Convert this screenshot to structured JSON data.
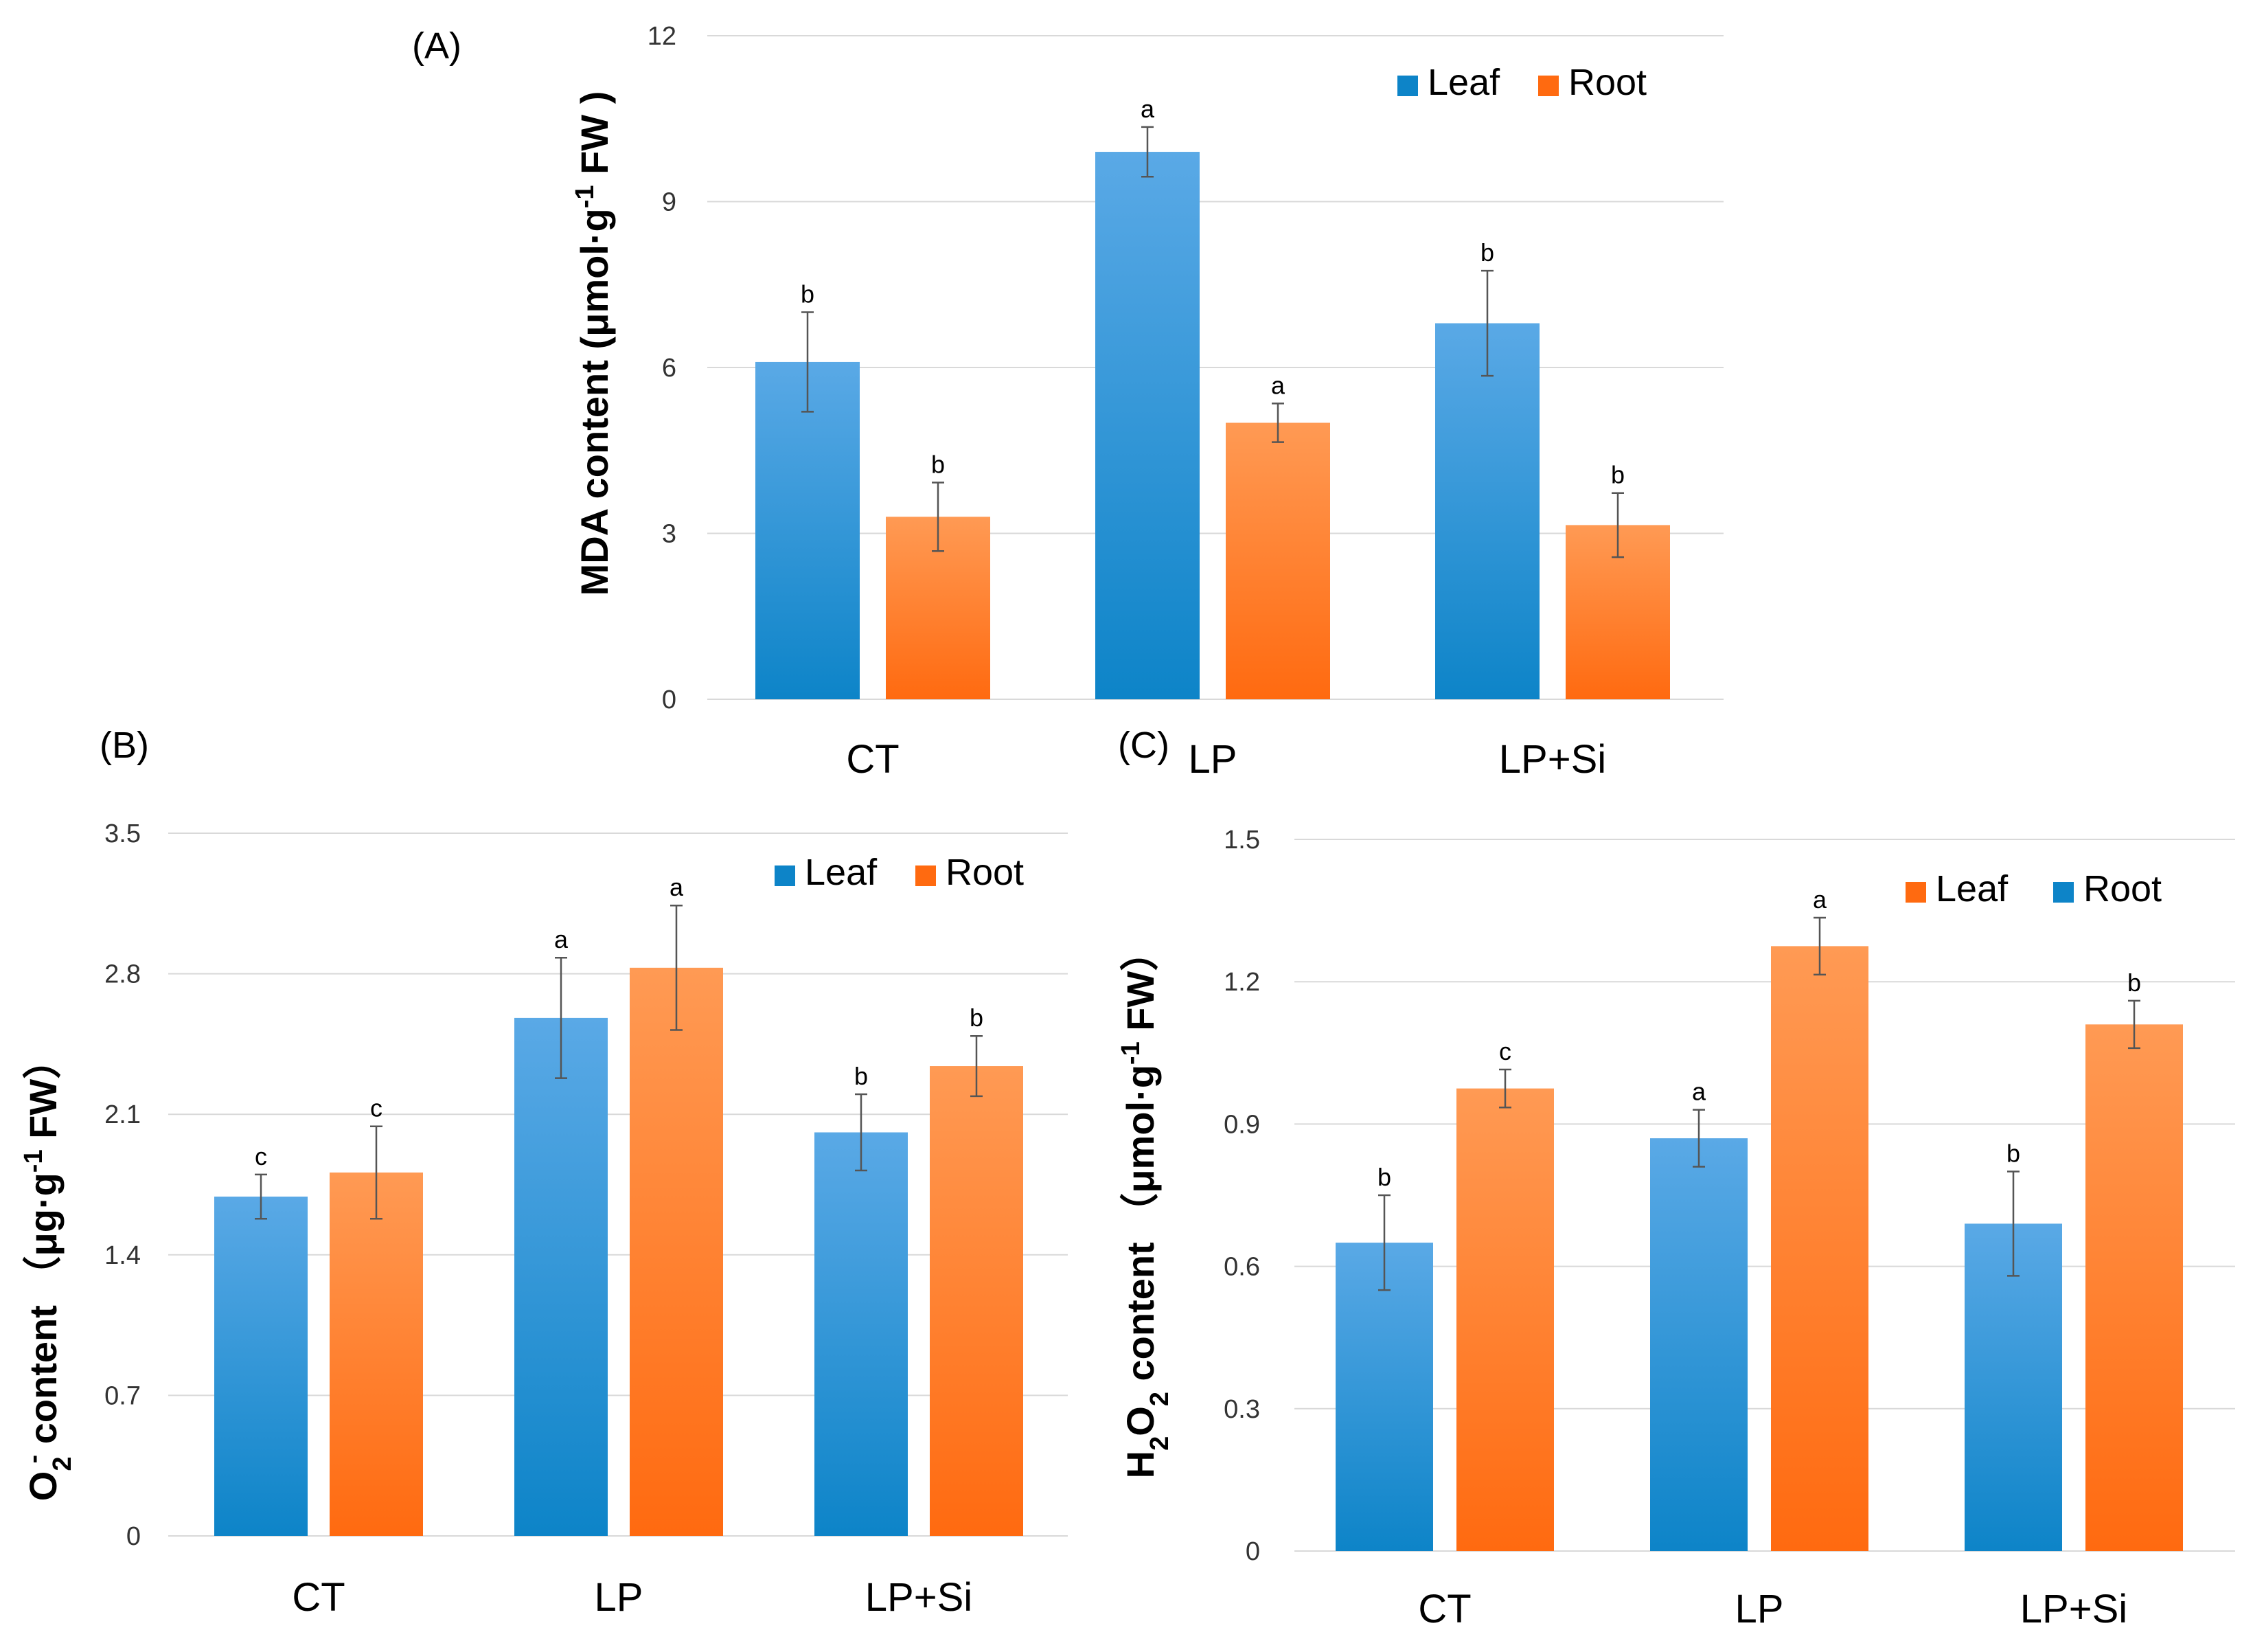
{
  "colors": {
    "blue_top": "#5aa9e6",
    "blue_bottom": "#0d84c8",
    "orange_top": "#ff9a54",
    "orange_bottom": "#ff6a10"
  },
  "chart_data": [
    {
      "id": "A",
      "type": "bar",
      "panel_label": "(A)",
      "categories": [
        "CT",
        "LP",
        "LP+Si"
      ],
      "ylabel_parts": [
        "MDA content (μmol·g",
        "-1",
        " FW )"
      ],
      "ylim": [
        0,
        12
      ],
      "yticks": [
        0,
        3,
        6,
        9,
        12
      ],
      "ytick_labels": [
        "0",
        "3",
        "6",
        "9",
        "12"
      ],
      "legend_position": "top-right",
      "series": [
        {
          "name": "Leaf",
          "color": "blue",
          "values": [
            6.1,
            9.9,
            6.8
          ],
          "errors": [
            0.9,
            0.45,
            0.95
          ],
          "letters": [
            "b",
            "a",
            "b"
          ]
        },
        {
          "name": "Root",
          "color": "orange",
          "values": [
            3.3,
            5.0,
            3.15
          ],
          "errors": [
            0.62,
            0.35,
            0.58
          ],
          "letters": [
            "b",
            "a",
            "b"
          ]
        }
      ]
    },
    {
      "id": "B",
      "type": "bar",
      "panel_label": "(B)",
      "categories": [
        "CT",
        "LP",
        "LP+Si"
      ],
      "ylabel_parts": [
        "O",
        "2",
        "-",
        " content （μg·g",
        "-1",
        " FW）"
      ],
      "ylim": [
        0,
        3.5
      ],
      "yticks": [
        0,
        0.7,
        1.4,
        2.1,
        2.8,
        3.5
      ],
      "ytick_labels": [
        "0",
        "0.7",
        "1.4",
        "2.1",
        "2.8",
        "3.5"
      ],
      "legend_position": "top-right",
      "series": [
        {
          "name": "Leaf",
          "color": "blue",
          "values": [
            1.69,
            2.58,
            2.01
          ],
          "errors": [
            0.11,
            0.3,
            0.19
          ],
          "letters": [
            "c",
            "a",
            "b"
          ]
        },
        {
          "name": "Root",
          "color": "orange",
          "values": [
            1.81,
            2.83,
            2.34
          ],
          "errors": [
            0.23,
            0.31,
            0.15
          ],
          "letters": [
            "c",
            "a",
            "b"
          ]
        }
      ]
    },
    {
      "id": "C",
      "type": "bar",
      "panel_label": "(C)",
      "categories": [
        "CT",
        "LP",
        "LP+Si"
      ],
      "ylabel_parts": [
        "H",
        "2",
        "O",
        "2",
        " content （μmol·g",
        "-1",
        " FW）"
      ],
      "ylim": [
        0,
        1.5
      ],
      "yticks": [
        0,
        0.3,
        0.6,
        0.9,
        1.2,
        1.5
      ],
      "ytick_labels": [
        "0",
        "0.3",
        "0.6",
        "0.9",
        "1.2",
        "1.5"
      ],
      "legend_position": "top-right",
      "legend_order": [
        1,
        0
      ],
      "series": [
        {
          "name": "Root",
          "color": "blue",
          "values": [
            0.65,
            0.87,
            0.69
          ],
          "errors": [
            0.1,
            0.06,
            0.11
          ],
          "letters": [
            "b",
            "a",
            "b"
          ]
        },
        {
          "name": "Leaf",
          "color": "orange",
          "values": [
            0.975,
            1.275,
            1.11
          ],
          "errors": [
            0.04,
            0.06,
            0.05
          ],
          "letters": [
            "c",
            "a",
            "b"
          ]
        }
      ]
    }
  ]
}
